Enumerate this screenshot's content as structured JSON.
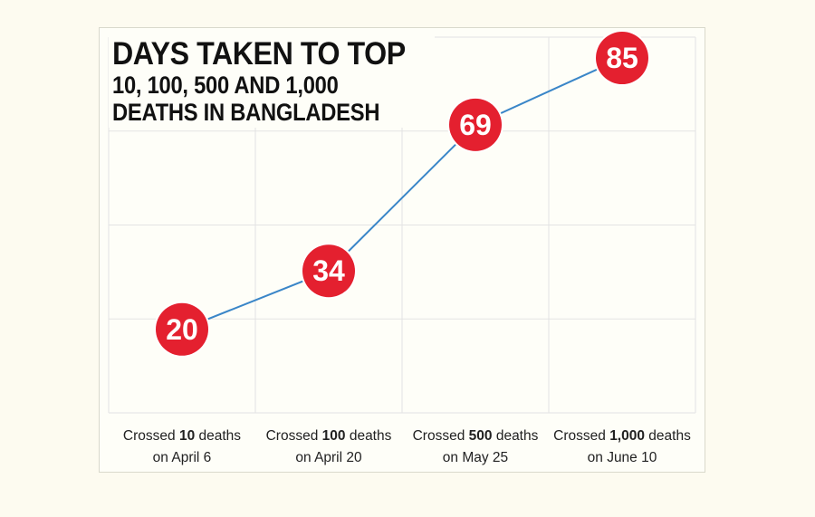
{
  "title": {
    "line1": "DAYS TAKEN TO TOP",
    "line2": "10, 100, 500 AND 1,000",
    "line3": "DEATHS IN BANGLADESH"
  },
  "colors": {
    "marker": "#e4202f",
    "line": "#3a86c8",
    "grid": "#e3e3e3",
    "background": "#fdfbf0"
  },
  "chart_data": {
    "type": "line",
    "title": "DAYS TAKEN TO TOP 10, 100, 500 AND 1,000 DEATHS IN BANGLADESH",
    "categories": [
      {
        "prefix": "Crossed ",
        "bold": "10",
        "suffix": " deaths",
        "line2": "on April 6"
      },
      {
        "prefix": "Crossed ",
        "bold": "100",
        "suffix": " deaths",
        "line2": "on April 20"
      },
      {
        "prefix": "Crossed ",
        "bold": "500",
        "suffix": " deaths",
        "line2": "on May 25"
      },
      {
        "prefix": "Crossed ",
        "bold": "1,000",
        "suffix": " deaths",
        "line2": "on June 10"
      }
    ],
    "values": [
      20,
      34,
      69,
      85
    ],
    "ylim": [
      0,
      90
    ],
    "grid": true,
    "data_labels": true
  }
}
